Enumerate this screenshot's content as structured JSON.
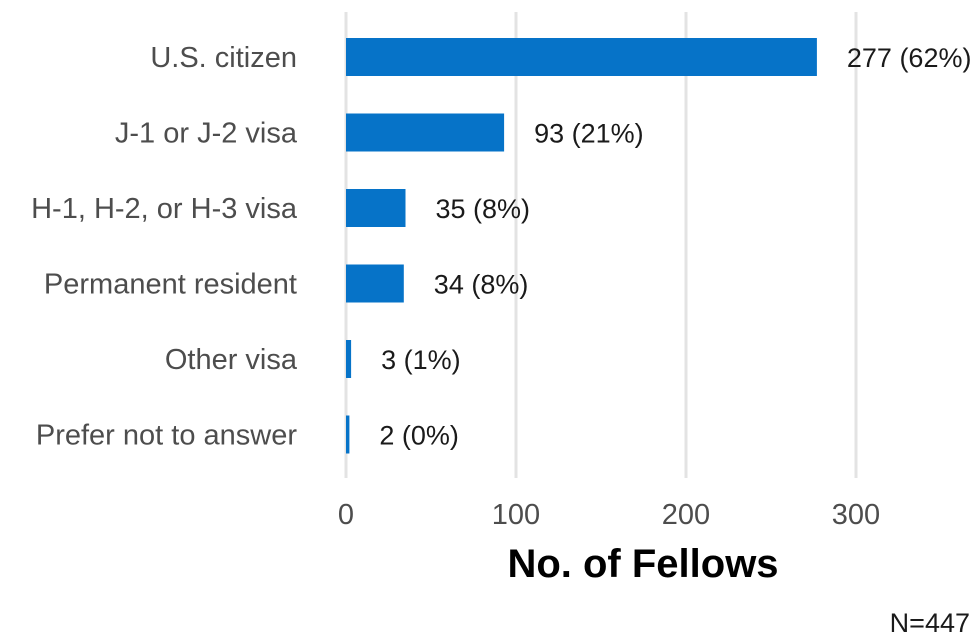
{
  "chart_data": {
    "type": "bar",
    "orientation": "horizontal",
    "categories": [
      "U.S. citizen",
      "J-1 or J-2 visa",
      "H-1, H-2, or H-3 visa",
      "Permanent resident",
      "Other visa",
      "Prefer not to answer"
    ],
    "values": [
      277,
      93,
      35,
      34,
      3,
      2
    ],
    "data_labels": [
      "277 (62%)",
      "93 (21%)",
      "35 (8%)",
      "34 (8%)",
      "3 (1%)",
      "2 (0%)"
    ],
    "xlabel": "No. of Fellows",
    "xlim": [
      0,
      350
    ],
    "x_ticks": [
      0,
      100,
      200,
      300
    ],
    "grid": "vertical",
    "bar_color": "#0673c8",
    "note": "N=447"
  }
}
